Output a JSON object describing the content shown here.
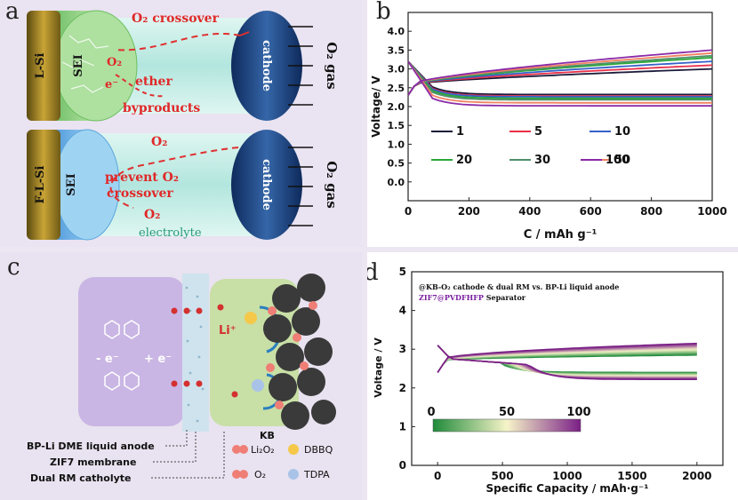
{
  "panel_a": {
    "label": "a",
    "top_cell": {
      "anode": "L-Si",
      "sei": "SEI",
      "cathode": "cathode",
      "gas": "O₂ gas",
      "crossover": "O₂ crossover",
      "o2_left": "O₂",
      "electron": "e⁻",
      "ether": "ether",
      "byproducts": "byproducts"
    },
    "bottom_cell": {
      "anode": "F-L-Si",
      "sei": "SEI",
      "cathode": "cathode",
      "gas": "O₂ gas",
      "o2_top": "O₂",
      "prevent_line1": "prevent O₂",
      "prevent_line2": "crossover",
      "o2_bottom": "O₂",
      "electrolyte": "electrolyte"
    }
  },
  "panel_b_label": "b",
  "panel_c": {
    "label": "c",
    "redox_left": "- e⁻",
    "redox_right": "+ e⁻",
    "li_plus": "Li⁺",
    "kb": "KB",
    "left_labels": [
      "BP-Li DME liquid anode",
      "ZIF7 membrane",
      "Dual RM catholyte"
    ],
    "legend": [
      {
        "name": "Li₂O₂",
        "color": "#ef7f76"
      },
      {
        "name": "DBBQ",
        "color": "#f5c84a"
      },
      {
        "name": "O₂",
        "color": "#ef7f76"
      },
      {
        "name": "TDPA",
        "color": "#a9c3e8"
      }
    ]
  },
  "panel_d_label": "d",
  "chart_data": [
    {
      "type": "line",
      "xlabel": "C / mAh g⁻¹",
      "ylabel": "Voltage/ V",
      "xlim": [
        0,
        1000
      ],
      "ylim": [
        -0.5,
        4.5
      ],
      "xticks": [
        "0",
        "200",
        "400",
        "600",
        "800",
        "1000"
      ],
      "yticks": [
        "0.0",
        "0.5",
        "1.0",
        "1.5",
        "2.0",
        "2.5",
        "3.0",
        "3.5",
        "4.0"
      ],
      "series": [
        {
          "name": "1",
          "color": "#1a1a3a",
          "charge_end": 3.0,
          "discharge_end": 2.32
        },
        {
          "name": "5",
          "color": "#e8304a",
          "charge_end": 3.1,
          "discharge_end": 2.28
        },
        {
          "name": "10",
          "color": "#3560c8",
          "charge_end": 3.2,
          "discharge_end": 2.26
        },
        {
          "name": "20",
          "color": "#2aa838",
          "charge_end": 3.3,
          "discharge_end": 2.22
        },
        {
          "name": "30",
          "color": "#4f8f6a",
          "charge_end": 3.35,
          "discharge_end": 2.18
        },
        {
          "name": "50",
          "color": "#f08060",
          "charge_end": 3.42,
          "discharge_end": 2.1
        },
        {
          "name": "100",
          "color": "#8a2aa8",
          "charge_end": 3.5,
          "discharge_end": 2.02
        }
      ]
    },
    {
      "type": "line",
      "xlabel": "Specific Capacity / mAh·g⁻¹",
      "ylabel": "Voltage / V",
      "xlim": [
        -200,
        2200
      ],
      "ylim": [
        0,
        5
      ],
      "xticks": [
        "0",
        "500",
        "1000",
        "1500",
        "2000"
      ],
      "yticks": [
        "0",
        "1",
        "2",
        "3",
        "4",
        "5"
      ],
      "annotation_line1": "@KB-O₂ cathode & dual RM vs. BP-Li liquid anode",
      "annotation_line2_colored": "ZIF7@PVDFHFP",
      "annotation_line2_rest": " Separator",
      "colorbar_ticks": [
        "0",
        "50",
        "100"
      ],
      "colorbar_colors": [
        "#1f8a3a",
        "#f6f4c8",
        "#7a1f86"
      ]
    }
  ]
}
